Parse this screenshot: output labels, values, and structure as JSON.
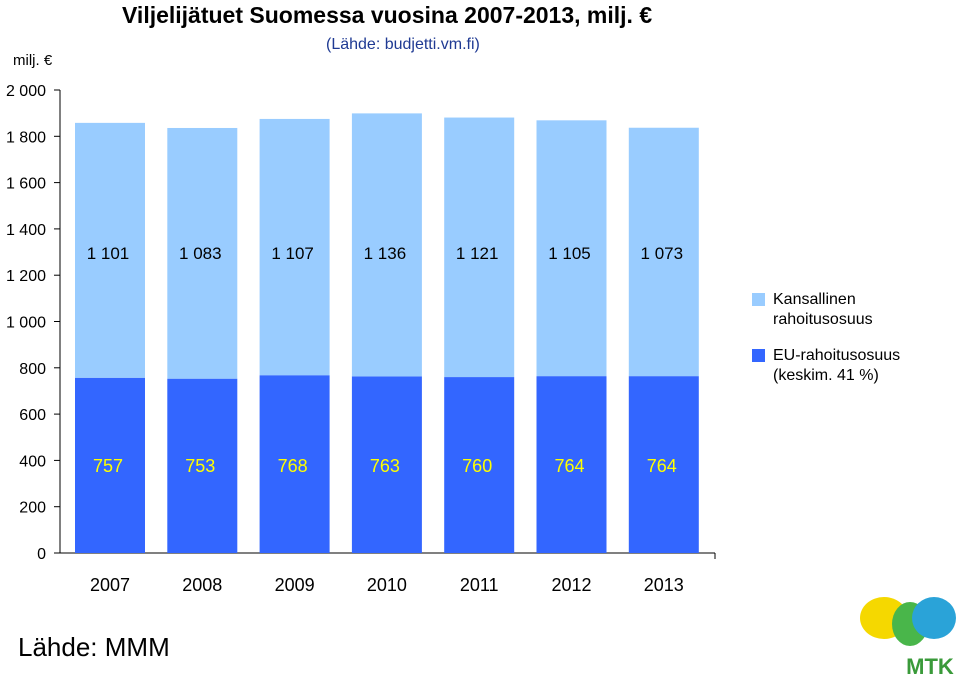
{
  "title": "Viljelijätuet Suomessa vuosina 2007-2013, milj. €",
  "subtitle": "(Lähde: budjetti.vm.fi)",
  "unit_label": "milj. €",
  "source_note": "Lähde: MMM",
  "logo_text": "MTK",
  "colors": {
    "eu": "#3366ff",
    "national": "#99ccff",
    "eu_label": "#ffff00"
  },
  "chart_data": {
    "type": "bar",
    "stacked": true,
    "categories": [
      "2007",
      "2008",
      "2009",
      "2010",
      "2011",
      "2012",
      "2013"
    ],
    "series": [
      {
        "name": "EU-rahoitusosuus (keskim. 41 %)",
        "values": [
          757,
          753,
          768,
          763,
          760,
          764,
          764
        ],
        "labels": [
          "757",
          "753",
          "768",
          "763",
          "760",
          "764",
          "764"
        ]
      },
      {
        "name": "Kansallinen rahoitusosuus",
        "values": [
          1101,
          1083,
          1107,
          1136,
          1121,
          1105,
          1073
        ],
        "labels": [
          "1 101",
          "1 083",
          "1 107",
          "1 136",
          "1 121",
          "1 105",
          "1 073"
        ]
      }
    ],
    "y_ticks": [
      "0",
      "200",
      "400",
      "600",
      "800",
      "1 000",
      "1 200",
      "1 400",
      "1 600",
      "1 800",
      "2 000"
    ],
    "ylim": [
      0,
      2000
    ],
    "legend": "right",
    "grid": false
  }
}
